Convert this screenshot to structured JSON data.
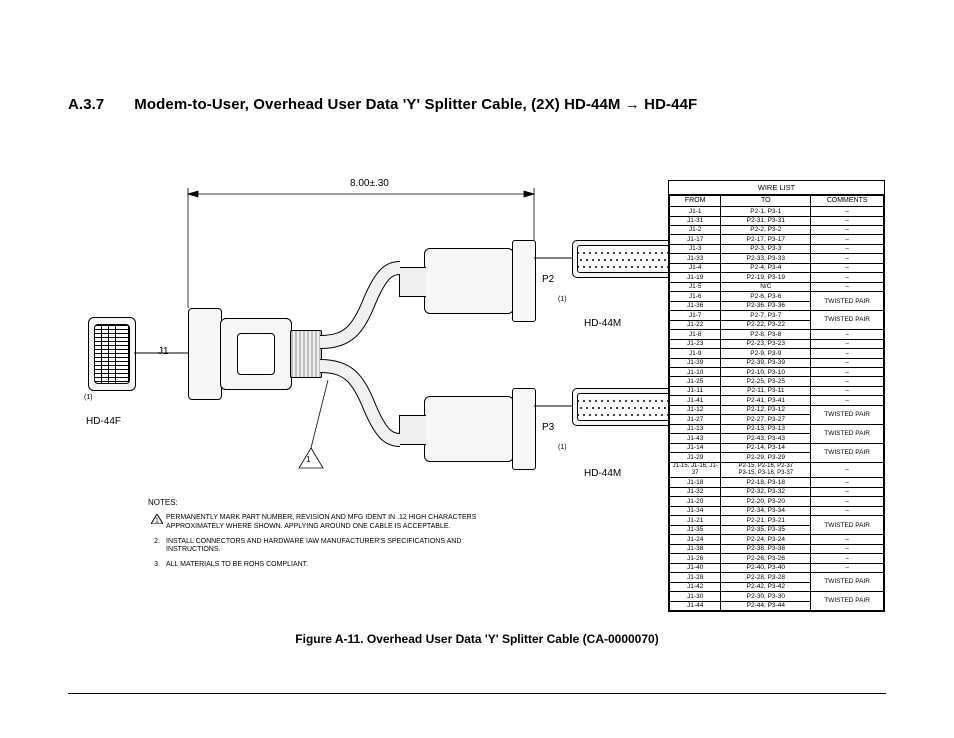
{
  "heading": {
    "section": "A.3.7",
    "title": "Modem-to-User, Overhead User Data 'Y' Splitter Cable, (2X) HD-44M → HD-44F"
  },
  "diagram": {
    "dimension_label": "8.00±.30",
    "labels": {
      "j1": "J1",
      "p2": "P2",
      "p3": "P3",
      "hd44f": "HD-44F",
      "hd44m_upper": "HD-44M",
      "hd44m_lower": "HD-44M",
      "note_callout": "1",
      "paren1": "(1)",
      "paren1_b": "(1)",
      "paren1_c": "(1)"
    }
  },
  "notes": {
    "title": "NOTES:",
    "items": [
      {
        "num": "1",
        "triangle": true,
        "text": "PERMANENTLY MARK PART NUMBER, REVISION AND MFG IDENT IN .12 HIGH CHARACTERS APPROXIMATELY WHERE SHOWN. APPLYING AROUND ONE CABLE IS ACCEPTABLE."
      },
      {
        "num": "2.",
        "triangle": false,
        "text": "INSTALL CONNECTORS AND HARDWARE IAW MANUFACTURER'S SPECIFICATIONS AND INSTRUCTIONS."
      },
      {
        "num": "3.",
        "triangle": false,
        "text": "ALL MATERIALS TO BE ROHS COMPLIANT."
      }
    ]
  },
  "caption": "Figure A-11. Overhead User Data 'Y' Splitter Cable (CA-0000070)",
  "wirelist": {
    "title": "WIRE LIST",
    "columns": [
      "FROM",
      "TO",
      "COMMENTS"
    ],
    "rows": [
      {
        "from": "J1-1",
        "to": "P2-1, P3-1",
        "c": "–"
      },
      {
        "from": "J1-31",
        "to": "P2-31, P3-31",
        "c": "–"
      },
      {
        "from": "J1-2",
        "to": "P2-2, P3-2",
        "c": "–"
      },
      {
        "from": "J1-17",
        "to": "P2-17, P3-17",
        "c": "–"
      },
      {
        "from": "J1-3",
        "to": "P2-3, P3-3",
        "c": "–"
      },
      {
        "from": "J1-33",
        "to": "P2-33, P3-33",
        "c": "–"
      },
      {
        "from": "J1-4",
        "to": "P2-4, P3-4",
        "c": "–"
      },
      {
        "from": "J1-19",
        "to": "P2-19, P3-19",
        "c": "–"
      },
      {
        "from": "J1-5",
        "to": "N/C",
        "c": "–"
      },
      {
        "from": "J1-6",
        "to": "P2-6, P3-6",
        "c": "",
        "span": 2,
        "group": "TWISTED PAIR"
      },
      {
        "from": "J1-36",
        "to": "P2-36, P3-36",
        "c": ""
      },
      {
        "from": "J1-7",
        "to": "P2-7, P3-7",
        "c": "",
        "span": 2,
        "group": "TWISTED PAIR"
      },
      {
        "from": "J1-22",
        "to": "P2-22, P3-22",
        "c": ""
      },
      {
        "from": "J1-8",
        "to": "P2-8, P3-8",
        "c": "–"
      },
      {
        "from": "J1-23",
        "to": "P2-23, P3-23",
        "c": "–"
      },
      {
        "from": "J1-9",
        "to": "P2-9, P3-9",
        "c": "–"
      },
      {
        "from": "J1-39",
        "to": "P2-39, P3-39",
        "c": "–"
      },
      {
        "from": "J1-10",
        "to": "P2-10, P3-10",
        "c": "–"
      },
      {
        "from": "J1-25",
        "to": "P2-25, P3-25",
        "c": "–"
      },
      {
        "from": "J1-11",
        "to": "P2-11, P3-11",
        "c": "–"
      },
      {
        "from": "J1-41",
        "to": "P2-41, P3-41",
        "c": "–"
      },
      {
        "from": "J1-12",
        "to": "P2-12, P3-12",
        "c": "",
        "span": 2,
        "group": "TWISTED PAIR"
      },
      {
        "from": "J1-27",
        "to": "P2-27, P3-27",
        "c": ""
      },
      {
        "from": "J1-13",
        "to": "P2-13, P3-13",
        "c": "",
        "span": 2,
        "group": "TWISTED PAIR"
      },
      {
        "from": "J1-43",
        "to": "P2-43, P3-43",
        "c": ""
      },
      {
        "from": "J1-14",
        "to": "P2-14, P3-14",
        "c": "",
        "span": 2,
        "group": "TWISTED PAIR"
      },
      {
        "from": "J1-29",
        "to": "P2-29, P3-29",
        "c": ""
      },
      {
        "from": "J1-15, J1-16, J1-37",
        "to": "P2-15, P2-16, P2-37\nP3-15, P3-16, P3-37",
        "c": "–",
        "tall": true
      },
      {
        "from": "J1-18",
        "to": "P2-18, P3-18",
        "c": "–"
      },
      {
        "from": "J1-32",
        "to": "P2-32, P3-32",
        "c": "–"
      },
      {
        "from": "J1-20",
        "to": "P2-20, P3-20",
        "c": "–"
      },
      {
        "from": "J1-34",
        "to": "P2-34, P3-34",
        "c": "–"
      },
      {
        "from": "J1-21",
        "to": "P2-21, P3-21",
        "c": "",
        "span": 2,
        "group": "TWISTED PAIR"
      },
      {
        "from": "J1-35",
        "to": "P2-35, P3-35",
        "c": ""
      },
      {
        "from": "J1-24",
        "to": "P2-24, P3-24",
        "c": "–"
      },
      {
        "from": "J1-38",
        "to": "P2-38, P3-38",
        "c": "–"
      },
      {
        "from": "J1-26",
        "to": "P2-26, P3-26",
        "c": "–"
      },
      {
        "from": "J1-40",
        "to": "P2-40, P3-40",
        "c": "–"
      },
      {
        "from": "J1-28",
        "to": "P2-28, P3-28",
        "c": "",
        "span": 2,
        "group": "TWISTED PAIR"
      },
      {
        "from": "J1-42",
        "to": "P2-42, P3-42",
        "c": ""
      },
      {
        "from": "J1-30",
        "to": "P2-30, P3-30",
        "c": "",
        "span": 2,
        "group": "TWISTED PAIR"
      },
      {
        "from": "J1-44",
        "to": "P2-44, P3-44",
        "c": ""
      }
    ]
  }
}
